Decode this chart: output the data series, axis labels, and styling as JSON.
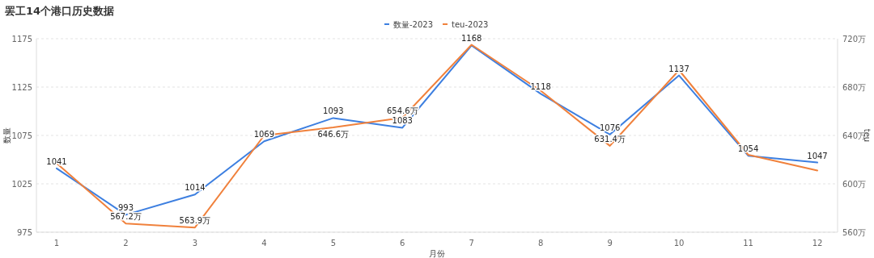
{
  "chart_data": {
    "type": "line",
    "title": "罢工14个港口历史数据",
    "xlabel": "月份",
    "ylabel": "数量",
    "y2label": "teu",
    "categories": [
      "1",
      "2",
      "3",
      "4",
      "5",
      "6",
      "7",
      "8",
      "9",
      "10",
      "11",
      "12"
    ],
    "series": [
      {
        "name": "数量-2023",
        "color": "#3d7fe0",
        "values": [
          1041,
          993,
          1014,
          1069,
          1093,
          1083,
          1168,
          1118,
          1076,
          1137,
          1054,
          1047
        ],
        "value_labels": [
          "1041",
          "993",
          "1014",
          "1069",
          "1093",
          "1083",
          "1168",
          "1118",
          "1076",
          "1137",
          "1054",
          "1047"
        ]
      },
      {
        "name": "teu-2023",
        "color": "#f0813c",
        "axis": "y2",
        "values": [
          617,
          567.2,
          563.9,
          640,
          646.6,
          654.6,
          715,
          677,
          631.4,
          694,
          624,
          611
        ],
        "value_labels": [
          null,
          "567.2万",
          "563.9万",
          null,
          "646.6万",
          "654.6万",
          null,
          null,
          "631.4万",
          null,
          null,
          null
        ]
      }
    ],
    "ylim": [
      975,
      1175
    ],
    "yticks": [
      975,
      1025,
      1075,
      1125,
      1175
    ],
    "y2lim": [
      560,
      720
    ],
    "y2ticks": [
      {
        "value": 560,
        "label": "560万"
      },
      {
        "value": 600,
        "label": "600万"
      },
      {
        "value": 640,
        "label": "640万"
      },
      {
        "value": 680,
        "label": "680万"
      },
      {
        "value": 720,
        "label": "720万"
      }
    ],
    "grid": "y",
    "legend": "top"
  }
}
